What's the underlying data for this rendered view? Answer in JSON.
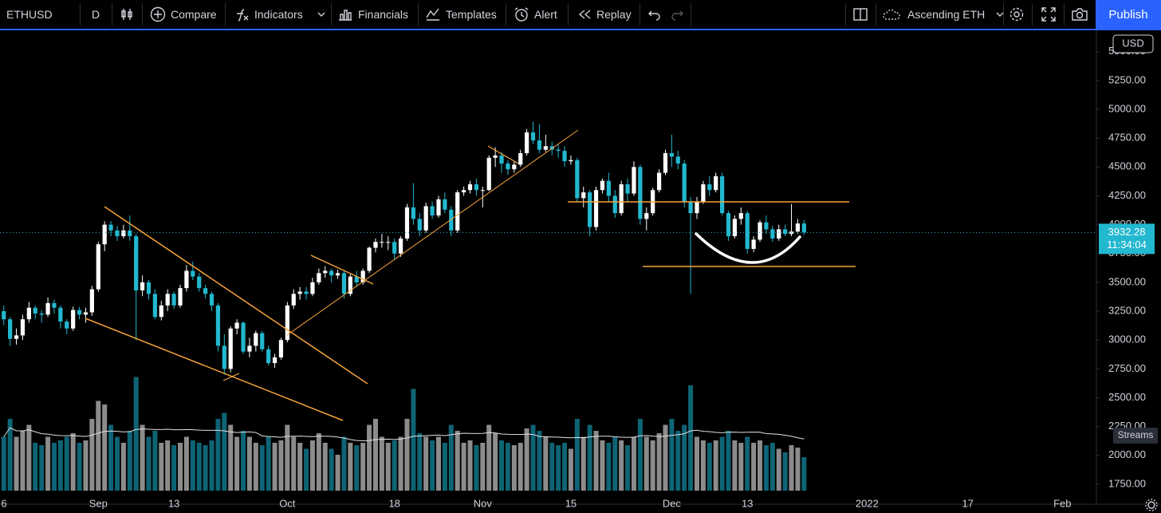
{
  "toolbar": {
    "symbol": "ETHUSD",
    "interval": "D",
    "compare": "Compare",
    "indicators": "Indicators",
    "financials": "Financials",
    "templates": "Templates",
    "alert": "Alert",
    "replay": "Replay",
    "layout": "Ascending ETH",
    "publish": "Publish"
  },
  "chart_data": {
    "type": "candlestick",
    "currency": "USD",
    "streams": "Streams",
    "candles": [
      [
        3250,
        3300,
        3130,
        3180,
        45
      ],
      [
        3180,
        3200,
        2950,
        3010,
        60
      ],
      [
        3010,
        3100,
        2960,
        3040,
        45
      ],
      [
        3040,
        3220,
        3000,
        3180,
        50
      ],
      [
        3180,
        3330,
        3150,
        3280,
        55
      ],
      [
        3280,
        3300,
        3180,
        3230,
        40
      ],
      [
        3230,
        3260,
        3150,
        3220,
        38
      ],
      [
        3220,
        3370,
        3200,
        3320,
        45
      ],
      [
        3320,
        3350,
        3230,
        3280,
        40
      ],
      [
        3280,
        3300,
        3100,
        3160,
        42
      ],
      [
        3160,
        3180,
        3050,
        3100,
        45
      ],
      [
        3100,
        3290,
        3080,
        3260,
        48
      ],
      [
        3260,
        3290,
        3180,
        3220,
        40
      ],
      [
        3220,
        3280,
        3150,
        3240,
        42
      ],
      [
        3240,
        3470,
        3210,
        3440,
        60
      ],
      [
        3440,
        3850,
        3420,
        3830,
        75
      ],
      [
        3830,
        4030,
        3770,
        4000,
        72
      ],
      [
        4000,
        4030,
        3900,
        3950,
        55
      ],
      [
        3950,
        3990,
        3860,
        3900,
        45
      ],
      [
        3900,
        4000,
        3880,
        3950,
        40
      ],
      [
        3950,
        4080,
        3860,
        3900,
        50
      ],
      [
        3900,
        3920,
        3000,
        3430,
        95
      ],
      [
        3430,
        3560,
        3380,
        3500,
        55
      ],
      [
        3500,
        3520,
        3350,
        3400,
        45
      ],
      [
        3400,
        3440,
        3180,
        3200,
        50
      ],
      [
        3200,
        3340,
        3170,
        3300,
        40
      ],
      [
        3300,
        3440,
        3250,
        3400,
        42
      ],
      [
        3400,
        3420,
        3270,
        3300,
        38
      ],
      [
        3300,
        3480,
        3280,
        3450,
        40
      ],
      [
        3450,
        3650,
        3420,
        3600,
        45
      ],
      [
        3600,
        3680,
        3520,
        3550,
        42
      ],
      [
        3550,
        3580,
        3420,
        3450,
        40
      ],
      [
        3450,
        3480,
        3360,
        3400,
        38
      ],
      [
        3400,
        3420,
        3250,
        3300,
        42
      ],
      [
        3300,
        3320,
        2900,
        2950,
        60
      ],
      [
        2950,
        3050,
        2700,
        2750,
        65
      ],
      [
        2750,
        3120,
        2720,
        3100,
        55
      ],
      [
        3100,
        3180,
        3050,
        3150,
        45
      ],
      [
        3150,
        3160,
        2880,
        2900,
        50
      ],
      [
        2900,
        3020,
        2850,
        2950,
        45
      ],
      [
        2950,
        3080,
        2900,
        3060,
        40
      ],
      [
        3060,
        3080,
        2900,
        2920,
        38
      ],
      [
        2920,
        2950,
        2780,
        2800,
        45
      ],
      [
        2800,
        2880,
        2760,
        2850,
        40
      ],
      [
        2850,
        3020,
        2830,
        3000,
        42
      ],
      [
        3000,
        3330,
        2980,
        3300,
        55
      ],
      [
        3300,
        3440,
        3270,
        3400,
        45
      ],
      [
        3400,
        3460,
        3350,
        3420,
        40
      ],
      [
        3420,
        3460,
        3350,
        3400,
        35
      ],
      [
        3400,
        3540,
        3380,
        3500,
        42
      ],
      [
        3500,
        3620,
        3480,
        3580,
        48
      ],
      [
        3580,
        3640,
        3540,
        3600,
        40
      ],
      [
        3600,
        3620,
        3500,
        3560,
        35
      ],
      [
        3560,
        3610,
        3530,
        3580,
        30
      ],
      [
        3580,
        3600,
        3360,
        3400,
        45
      ],
      [
        3400,
        3570,
        3380,
        3550,
        40
      ],
      [
        3550,
        3600,
        3460,
        3500,
        38
      ],
      [
        3500,
        3620,
        3480,
        3600,
        40
      ],
      [
        3600,
        3810,
        3580,
        3800,
        55
      ],
      [
        3800,
        3880,
        3760,
        3850,
        60
      ],
      [
        3850,
        3920,
        3800,
        3850,
        45
      ],
      [
        3850,
        3900,
        3780,
        3850,
        40
      ],
      [
        3850,
        3880,
        3700,
        3750,
        42
      ],
      [
        3750,
        3900,
        3720,
        3880,
        45
      ],
      [
        3880,
        4180,
        3860,
        4150,
        60
      ],
      [
        4150,
        4360,
        4000,
        4050,
        85
      ],
      [
        4050,
        4100,
        3900,
        3950,
        48
      ],
      [
        3950,
        4190,
        3930,
        4160,
        45
      ],
      [
        4160,
        4200,
        4050,
        4080,
        42
      ],
      [
        4080,
        4250,
        4060,
        4220,
        45
      ],
      [
        4220,
        4280,
        4100,
        4130,
        40
      ],
      [
        4130,
        4160,
        3900,
        3950,
        55
      ],
      [
        3950,
        4300,
        3930,
        4280,
        50
      ],
      [
        4280,
        4330,
        4250,
        4300,
        40
      ],
      [
        4300,
        4380,
        4270,
        4350,
        42
      ],
      [
        4350,
        4400,
        4250,
        4300,
        38
      ],
      [
        4300,
        4330,
        4150,
        4300,
        40
      ],
      [
        4300,
        4600,
        4290,
        4580,
        55
      ],
      [
        4580,
        4670,
        4500,
        4600,
        48
      ],
      [
        4600,
        4630,
        4450,
        4530,
        42
      ],
      [
        4530,
        4560,
        4430,
        4480,
        40
      ],
      [
        4480,
        4550,
        4450,
        4520,
        38
      ],
      [
        4520,
        4650,
        4500,
        4620,
        40
      ],
      [
        4620,
        4830,
        4600,
        4800,
        52
      ],
      [
        4800,
        4890,
        4700,
        4730,
        55
      ],
      [
        4730,
        4870,
        4620,
        4650,
        50
      ],
      [
        4650,
        4780,
        4630,
        4680,
        45
      ],
      [
        4680,
        4720,
        4600,
        4650,
        40
      ],
      [
        4650,
        4700,
        4580,
        4640,
        38
      ],
      [
        4640,
        4680,
        4500,
        4550,
        40
      ],
      [
        4550,
        4600,
        4520,
        4560,
        35
      ],
      [
        4560,
        4580,
        4200,
        4230,
        60
      ],
      [
        4230,
        4330,
        4150,
        4280,
        45
      ],
      [
        4280,
        4300,
        3900,
        3980,
        55
      ],
      [
        3980,
        4330,
        3950,
        4300,
        50
      ],
      [
        4300,
        4400,
        4270,
        4380,
        42
      ],
      [
        4380,
        4450,
        4200,
        4250,
        40
      ],
      [
        4250,
        4300,
        4060,
        4100,
        45
      ],
      [
        4100,
        4380,
        4080,
        4350,
        42
      ],
      [
        4350,
        4400,
        4200,
        4270,
        38
      ],
      [
        4270,
        4550,
        4250,
        4500,
        45
      ],
      [
        4500,
        4520,
        4000,
        4050,
        60
      ],
      [
        4050,
        4150,
        3950,
        4100,
        45
      ],
      [
        4100,
        4320,
        4080,
        4300,
        42
      ],
      [
        4300,
        4480,
        4280,
        4450,
        48
      ],
      [
        4450,
        4650,
        4430,
        4620,
        55
      ],
      [
        4620,
        4780,
        4500,
        4590,
        60
      ],
      [
        4590,
        4640,
        4480,
        4530,
        50
      ],
      [
        4530,
        4560,
        4150,
        4200,
        55
      ],
      [
        4200,
        4240,
        3400,
        4100,
        88
      ],
      [
        4100,
        4240,
        4050,
        4200,
        45
      ],
      [
        4200,
        4380,
        4180,
        4350,
        42
      ],
      [
        4350,
        4420,
        4250,
        4300,
        40
      ],
      [
        4300,
        4450,
        4280,
        4420,
        42
      ],
      [
        4420,
        4450,
        4080,
        4100,
        45
      ],
      [
        4100,
        4120,
        3860,
        3900,
        50
      ],
      [
        3900,
        4080,
        3880,
        4050,
        42
      ],
      [
        4050,
        4150,
        4000,
        4100,
        40
      ],
      [
        4100,
        4120,
        3750,
        3790,
        45
      ],
      [
        3790,
        3900,
        3760,
        3870,
        40
      ],
      [
        3870,
        4040,
        3850,
        4020,
        42
      ],
      [
        4020,
        4080,
        3920,
        3960,
        38
      ],
      [
        3960,
        3990,
        3850,
        3880,
        40
      ],
      [
        3880,
        4000,
        3860,
        3960,
        35
      ],
      [
        3960,
        4000,
        3900,
        3920,
        32
      ],
      [
        3920,
        4180,
        3900,
        3940,
        38
      ],
      [
        3940,
        4050,
        3920,
        4010,
        36
      ],
      [
        4010,
        4040,
        3910,
        3932,
        28
      ]
    ],
    "xlim": [
      -0.6,
      173.4
    ],
    "xticks": [
      {
        "value": -1,
        "label": "6"
      },
      {
        "value": 15,
        "label": "Sep"
      },
      {
        "value": 27,
        "label": "13"
      },
      {
        "value": 45,
        "label": "Oct"
      },
      {
        "value": 62,
        "label": "18"
      },
      {
        "value": 76,
        "label": "Nov"
      },
      {
        "value": 90,
        "label": "15"
      },
      {
        "value": 106,
        "label": "Dec"
      },
      {
        "value": 118,
        "label": "13"
      },
      {
        "value": 137,
        "label": "2022"
      },
      {
        "value": 153,
        "label": "17"
      },
      {
        "value": 168,
        "label": "Feb"
      }
    ],
    "ylim": [
      1625,
      5671
    ],
    "yticks": [
      {
        "value": 1750,
        "label": "1750.00"
      },
      {
        "value": 2000,
        "label": "2000.00"
      },
      {
        "value": 2250,
        "label": "2250.00"
      },
      {
        "value": 2500,
        "label": "2500.00"
      },
      {
        "value": 2750,
        "label": "2750.00"
      },
      {
        "value": 3000,
        "label": "3000.00"
      },
      {
        "value": 3250,
        "label": "3250.00"
      },
      {
        "value": 3500,
        "label": "3500.00"
      },
      {
        "value": 3750,
        "label": "3750.00"
      },
      {
        "value": 4000,
        "label": "4000.00"
      },
      {
        "value": 4250,
        "label": "4250.00"
      },
      {
        "value": 4500,
        "label": "4500.00"
      },
      {
        "value": 4750,
        "label": "4750.00"
      },
      {
        "value": 5000,
        "label": "5000.00"
      },
      {
        "value": 5250,
        "label": "5250.00"
      },
      {
        "value": 5500,
        "label": "5500.00"
      }
    ],
    "volume_lim": [
      0,
      100
    ],
    "up_color": "#ffffff",
    "down_color": "#22b8cf",
    "volume_up_color": "#8c8c8c",
    "volume_down_color": "#0e6474",
    "last_price": 3932.28,
    "countdown": "11:34:04"
  }
}
